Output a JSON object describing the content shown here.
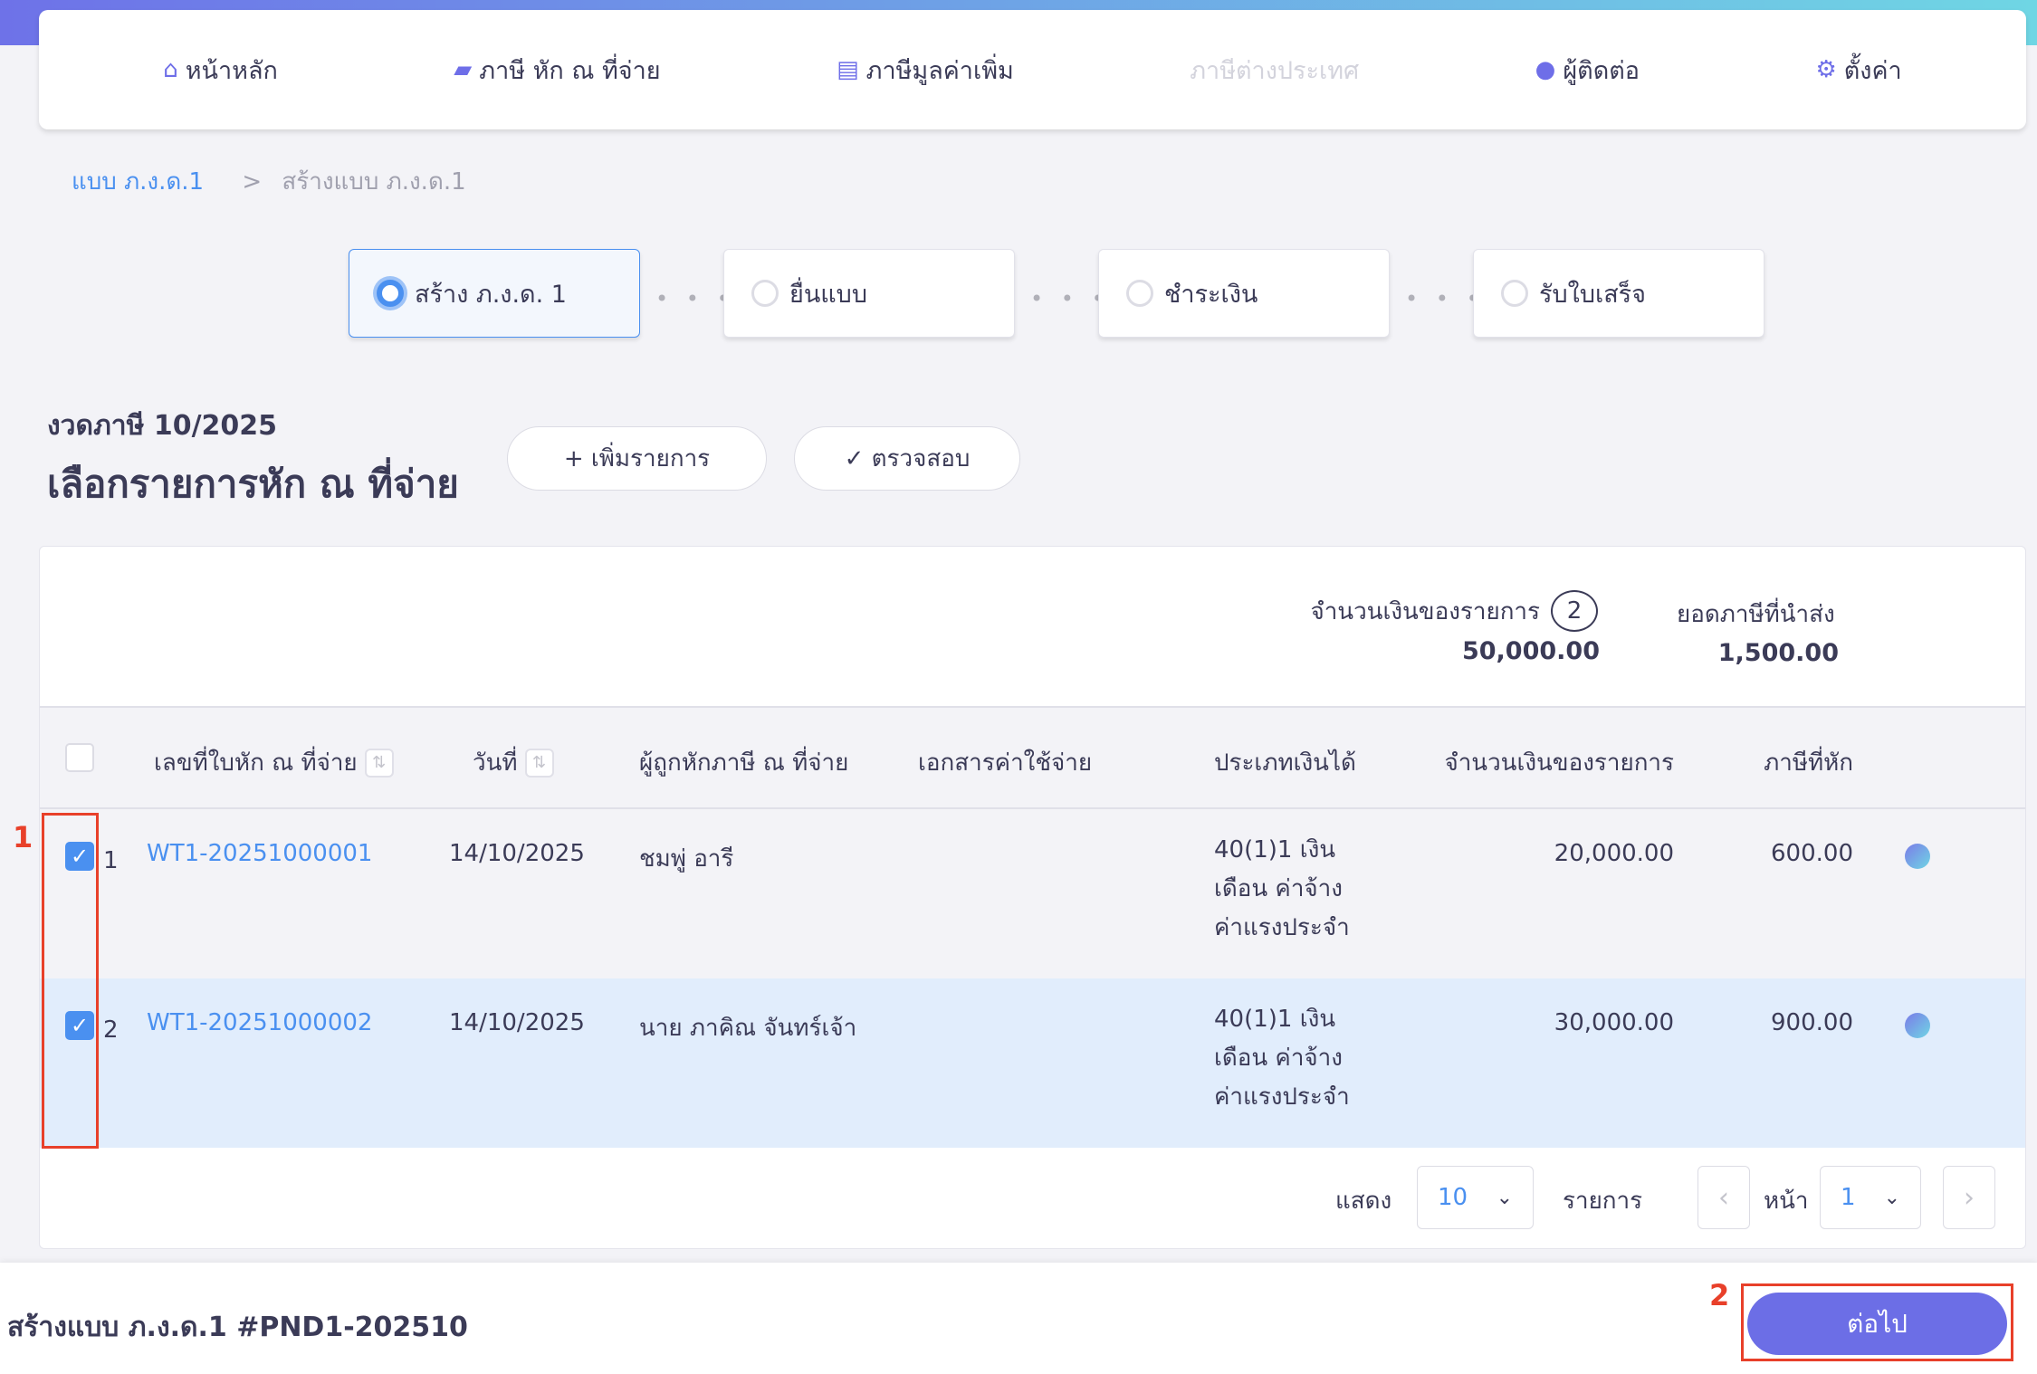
{
  "nav": {
    "items": [
      {
        "label": "หน้าหลัก",
        "icon": "home-icon",
        "glyph": "⌂",
        "disabled": false
      },
      {
        "label": "ภาษี หัก ณ ที่จ่าย",
        "icon": "wallet-icon",
        "glyph": "▰",
        "disabled": false
      },
      {
        "label": "ภาษีมูลค่าเพิ่ม",
        "icon": "document-icon",
        "glyph": "▤",
        "disabled": false
      },
      {
        "label": "ภาษีต่างประเทศ",
        "icon": "",
        "glyph": "",
        "disabled": true
      },
      {
        "label": "ผู้ติดต่อ",
        "icon": "user-icon",
        "glyph": "●",
        "disabled": false
      },
      {
        "label": "ตั้งค่า",
        "icon": "gear-icon",
        "glyph": "⚙",
        "disabled": false
      }
    ]
  },
  "breadcrumb": {
    "parent": "แบบ ภ.ง.ด.1",
    "separator": ">",
    "current": "สร้างแบบ ภ.ง.ด.1"
  },
  "steps": [
    {
      "label": "สร้าง ภ.ง.ด. 1",
      "active": true
    },
    {
      "label": "ยื่นแบบ",
      "active": false
    },
    {
      "label": "ชำระเงิน",
      "active": false
    },
    {
      "label": "รับใบเสร็จ",
      "active": false
    }
  ],
  "step_separator": "• • •",
  "header": {
    "period": "งวดภาษี 10/2025",
    "title": "เลือกรายการหัก ณ ที่จ่าย",
    "add_label": "+ เพิ่มรายการ",
    "check_label": "✓ ตรวจสอบ"
  },
  "summary": {
    "amount_label": "จำนวนเงินของรายการ",
    "count": "2",
    "amount": "50,000.00",
    "tax_label": "ยอดภาษีที่นำส่ง",
    "tax": "1,500.00"
  },
  "table": {
    "columns": [
      "เลขที่ใบหัก ณ ที่จ่าย",
      "วันที่",
      "ผู้ถูกหักภาษี ณ ที่จ่าย",
      "เอกสารค่าใช้จ่าย",
      "ประเภทเงินได้",
      "จำนวนเงินของรายการ",
      "ภาษีที่หัก"
    ],
    "sort_glyph": "⇅",
    "rows": [
      {
        "no": "1",
        "checked": true,
        "doc_no": "WT1-20251000001",
        "date": "14/10/2025",
        "payee": "ชมพู่ อารี",
        "expense_doc": "",
        "income_type": "40(1)1 เงินเดือน ค่าจ้าง ค่าแรงประจำ",
        "amount": "20,000.00",
        "tax": "600.00"
      },
      {
        "no": "2",
        "checked": true,
        "doc_no": "WT1-20251000002",
        "date": "14/10/2025",
        "payee": "นาย ภาคิณ จันทร์เจ้า",
        "expense_doc": "",
        "income_type": "40(1)1 เงินเดือน ค่าจ้าง ค่าแรงประจำ",
        "amount": "30,000.00",
        "tax": "900.00"
      }
    ]
  },
  "pagination": {
    "show_label": "แสดง",
    "page_size": "10",
    "items_label": "รายการ",
    "page_label": "หน้า",
    "page": "1",
    "prev": "‹",
    "next": "›",
    "chevron": "⌄"
  },
  "footer": {
    "title": "สร้างแบบ ภ.ง.ด.1 #PND1-202510",
    "next_label": "ต่อไป"
  },
  "annotations": [
    "1",
    "2"
  ],
  "colors": {
    "accent": "#6c6ee6",
    "link": "#4a90f0",
    "annotation": "#e8402a",
    "selected_row": "#e1edfc"
  }
}
